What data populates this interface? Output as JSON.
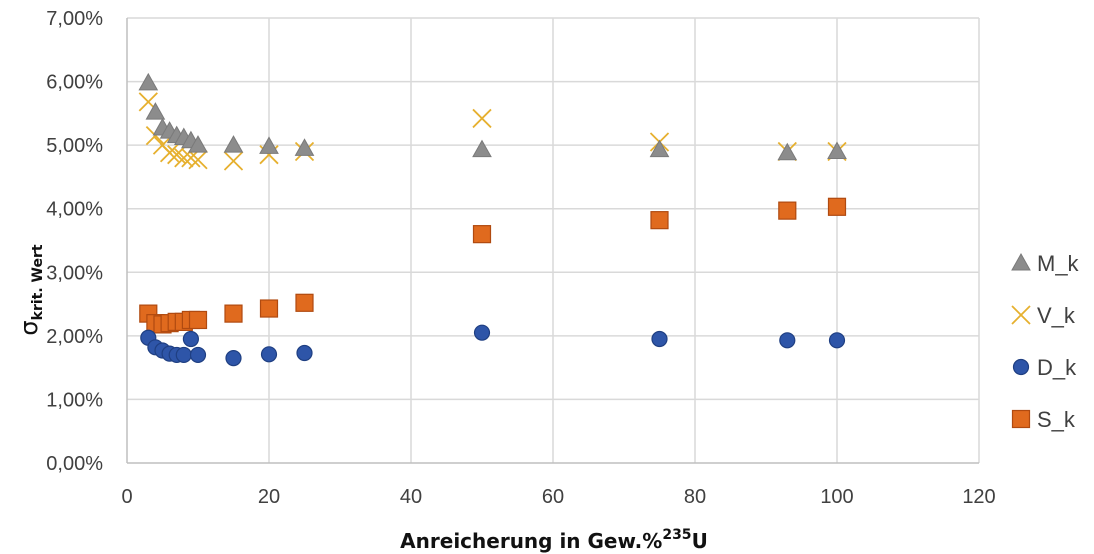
{
  "chart_data": {
    "type": "scatter",
    "xlabel_main": "Anreicherung in Gew.%",
    "xlabel_sup": "235",
    "xlabel_tail": "U",
    "ylabel_main": "σ",
    "ylabel_sub": "krit. Wert",
    "xlim": [
      0,
      120
    ],
    "ylim": [
      0,
      7
    ],
    "x_ticks": [
      0,
      20,
      40,
      60,
      80,
      100,
      120
    ],
    "y_ticks": [
      0,
      1,
      2,
      3,
      4,
      5,
      6,
      7
    ],
    "y_tick_labels": [
      "0,00%",
      "1,00%",
      "2,00%",
      "3,00%",
      "4,00%",
      "5,00%",
      "6,00%",
      "7,00%"
    ],
    "x_tick_labels": [
      "0",
      "20",
      "40",
      "60",
      "80",
      "100",
      "120"
    ],
    "grid": true,
    "legend_position": "right",
    "series": [
      {
        "name": "M_k",
        "marker": "triangle",
        "color": "#8c8c8c",
        "x": [
          3,
          4,
          5,
          6,
          7,
          8,
          9,
          10,
          15,
          20,
          25,
          50,
          75,
          93,
          100
        ],
        "y": [
          5.98,
          5.52,
          5.27,
          5.22,
          5.15,
          5.12,
          5.07,
          5.0,
          5.0,
          4.98,
          4.95,
          4.93,
          4.93,
          4.88,
          4.9
        ]
      },
      {
        "name": "V_k",
        "marker": "x",
        "color": "#e6b02e",
        "x": [
          3,
          4,
          5,
          6,
          7,
          8,
          9,
          10,
          15,
          20,
          25,
          50,
          75,
          93,
          100
        ],
        "y": [
          5.68,
          5.15,
          5.0,
          4.88,
          4.85,
          4.8,
          4.8,
          4.77,
          4.75,
          4.85,
          4.9,
          5.42,
          5.05,
          4.9,
          4.9
        ]
      },
      {
        "name": "D_k",
        "marker": "circle",
        "color": "#2e55a8",
        "x": [
          3,
          4,
          5,
          6,
          7,
          8,
          9,
          10,
          15,
          20,
          25,
          50,
          75,
          93,
          100
        ],
        "y": [
          1.97,
          1.82,
          1.77,
          1.72,
          1.7,
          1.7,
          1.95,
          1.7,
          1.65,
          1.71,
          1.73,
          2.05,
          1.95,
          1.93,
          1.93
        ]
      },
      {
        "name": "S_k",
        "marker": "square",
        "color": "#e06a1e",
        "x": [
          3,
          4,
          5,
          6,
          7,
          8,
          9,
          10,
          15,
          20,
          25,
          50,
          75,
          93,
          100
        ],
        "y": [
          2.35,
          2.2,
          2.18,
          2.2,
          2.22,
          2.22,
          2.25,
          2.25,
          2.35,
          2.43,
          2.52,
          3.6,
          3.82,
          3.97,
          4.03
        ]
      }
    ]
  }
}
